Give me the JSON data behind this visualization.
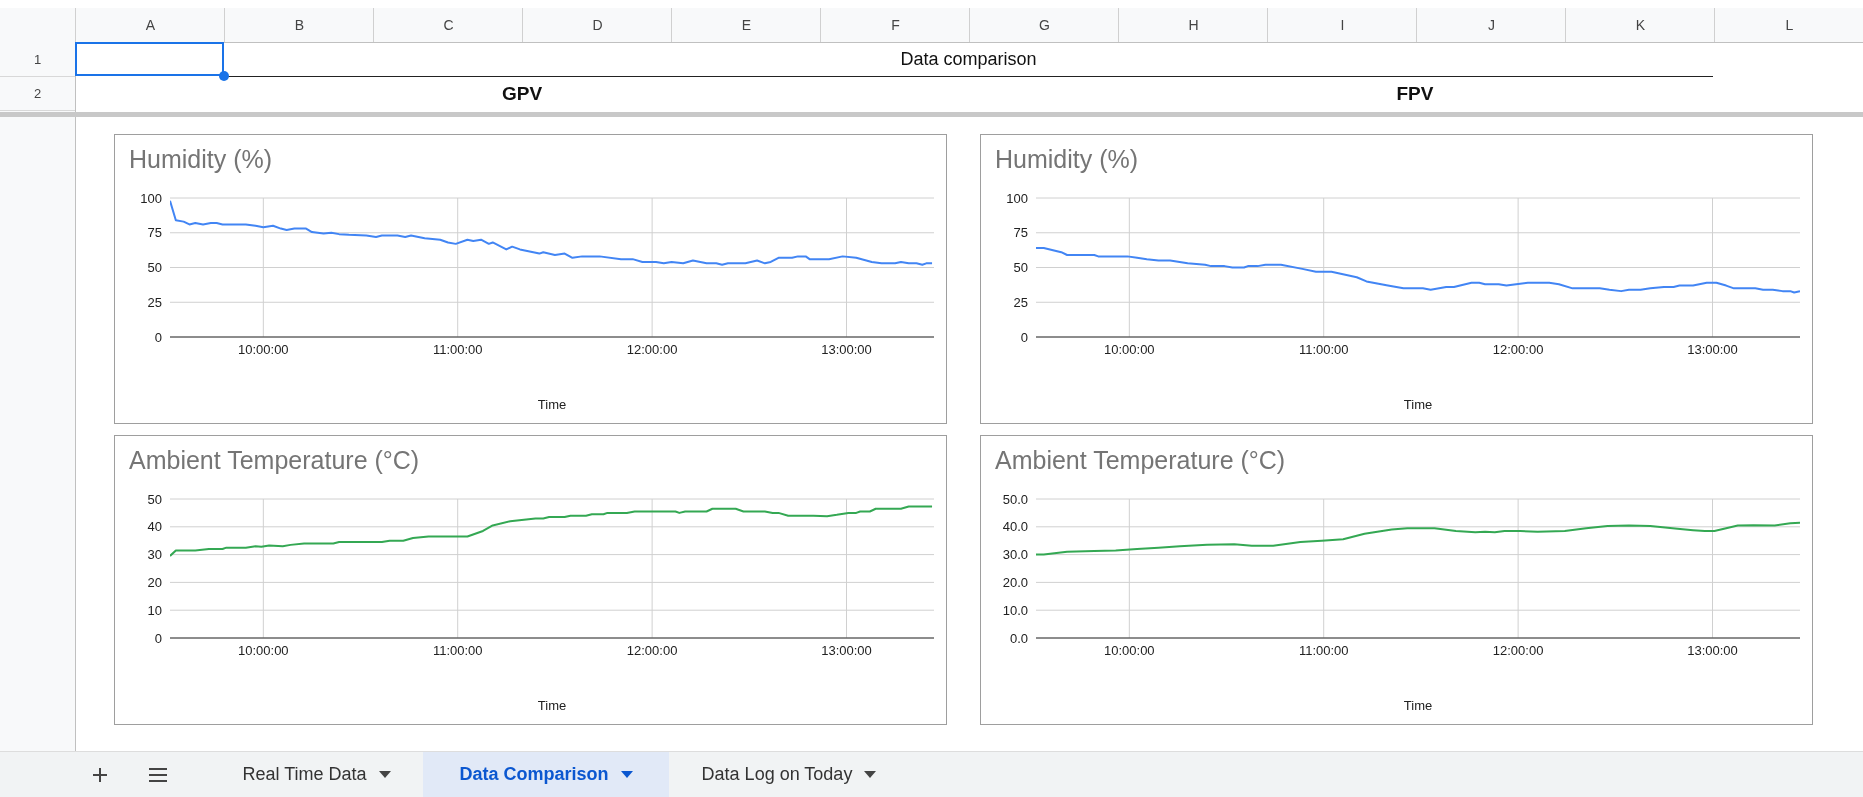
{
  "chart_data": [
    {
      "type": "other",
      "title": "Data comparison",
      "annotations": [
        "GPV",
        "FPV",
        "A",
        "B",
        "C",
        "D",
        "E",
        "F",
        "G",
        "H",
        "I",
        "J",
        "K",
        "L",
        "1",
        "2",
        "Real Time Data",
        "Data Comparison",
        "Data Log on Today"
      ]
    },
    {
      "type": "line",
      "title": "Humidity (%)",
      "xlabel": "Time",
      "color": "#4285f4",
      "grid": true,
      "xlim": [
        9.52,
        13.45
      ],
      "xticks": [
        {
          "value": 10,
          "label": "10:00:00"
        },
        {
          "value": 11,
          "label": "11:00:00"
        },
        {
          "value": 12,
          "label": "12:00:00"
        },
        {
          "value": 13,
          "label": "13:00:00"
        }
      ],
      "ylim": [
        0,
        100
      ],
      "yticks": [
        0,
        25,
        50,
        75,
        100
      ],
      "x": [
        9.52,
        9.55,
        9.59,
        9.62,
        9.65,
        9.69,
        9.73,
        9.76,
        9.79,
        9.91,
        9.96,
        10.0,
        10.05,
        10.09,
        10.12,
        10.16,
        10.22,
        10.25,
        10.31,
        10.35,
        10.39,
        10.44,
        10.53,
        10.58,
        10.61,
        10.69,
        10.73,
        10.76,
        10.83,
        10.91,
        10.95,
        10.99,
        11.05,
        11.08,
        11.12,
        11.16,
        11.18,
        11.25,
        11.28,
        11.32,
        11.42,
        11.44,
        11.5,
        11.55,
        11.59,
        11.64,
        11.73,
        11.84,
        11.9,
        11.95,
        12.02,
        12.06,
        12.1,
        12.16,
        12.21,
        12.28,
        12.33,
        12.36,
        12.39,
        12.48,
        12.54,
        12.58,
        12.61,
        12.65,
        12.72,
        12.75,
        12.79,
        12.81,
        12.91,
        12.98,
        13.05,
        13.13,
        13.18,
        13.25,
        13.28,
        13.32,
        13.36,
        13.39,
        13.41,
        13.44
      ],
      "values": [
        98,
        84,
        83,
        81,
        82,
        81,
        82,
        82,
        81,
        81,
        80,
        79,
        80,
        78,
        77,
        78,
        78,
        75.5,
        74.5,
        75,
        74,
        73.5,
        73,
        72,
        73,
        73,
        72,
        73,
        71,
        70,
        68,
        67,
        70,
        69,
        70,
        67,
        68,
        63,
        65,
        63,
        60,
        61,
        59,
        60,
        57,
        58,
        58,
        56,
        56,
        54,
        54,
        53,
        54,
        53,
        55,
        53,
        53,
        52,
        53,
        53,
        55,
        53,
        54,
        57,
        57,
        58,
        58,
        56,
        56,
        58,
        57,
        54,
        53,
        53,
        54,
        53,
        53,
        52,
        53,
        53
      ]
    },
    {
      "type": "line",
      "title": "Humidity (%)",
      "xlabel": "Time",
      "color": "#4285f4",
      "grid": true,
      "xlim": [
        9.52,
        13.45
      ],
      "xticks": [
        {
          "value": 10,
          "label": "10:00:00"
        },
        {
          "value": 11,
          "label": "11:00:00"
        },
        {
          "value": 12,
          "label": "12:00:00"
        },
        {
          "value": 13,
          "label": "13:00:00"
        }
      ],
      "ylim": [
        0,
        100
      ],
      "yticks": [
        0,
        25,
        50,
        75,
        100
      ],
      "x": [
        9.52,
        9.56,
        9.65,
        9.68,
        9.82,
        9.84,
        9.99,
        10.04,
        10.09,
        10.15,
        10.21,
        10.3,
        10.39,
        10.42,
        10.49,
        10.53,
        10.59,
        10.61,
        10.66,
        10.7,
        10.78,
        10.89,
        10.96,
        11.04,
        11.17,
        11.22,
        11.33,
        11.41,
        11.51,
        11.55,
        11.63,
        11.67,
        11.76,
        11.8,
        11.83,
        11.9,
        11.94,
        11.99,
        12.05,
        12.16,
        12.21,
        12.28,
        12.42,
        12.47,
        12.53,
        12.57,
        12.63,
        12.68,
        12.75,
        12.8,
        12.83,
        12.9,
        12.97,
        13.02,
        13.07,
        13.11,
        13.22,
        13.26,
        13.31,
        13.36,
        13.4,
        13.42,
        13.45
      ],
      "values": [
        64,
        64,
        61,
        59,
        59,
        58,
        58,
        57,
        56,
        55,
        55,
        53,
        52,
        51,
        51,
        50,
        50,
        51,
        51,
        52,
        52,
        49,
        47,
        47,
        43,
        40,
        37,
        35,
        35,
        34,
        36,
        36,
        39,
        39,
        38,
        38,
        37,
        38,
        39,
        39,
        38,
        35,
        35,
        34,
        33,
        34,
        34,
        35,
        36,
        36,
        37,
        37,
        39,
        39,
        37,
        35,
        35,
        34,
        34,
        33,
        33,
        32,
        33
      ]
    },
    {
      "type": "line",
      "title": "Ambient Temperature (°C)",
      "xlabel": "Time",
      "color": "#34a853",
      "grid": true,
      "xlim": [
        9.52,
        13.45
      ],
      "xticks": [
        {
          "value": 10,
          "label": "10:00:00"
        },
        {
          "value": 11,
          "label": "11:00:00"
        },
        {
          "value": 12,
          "label": "12:00:00"
        },
        {
          "value": 13,
          "label": "13:00:00"
        }
      ],
      "ylim": [
        0,
        50
      ],
      "yticks": [
        0,
        10,
        20,
        30,
        40,
        50
      ],
      "x": [
        9.52,
        9.55,
        9.65,
        9.72,
        9.79,
        9.81,
        9.91,
        9.96,
        9.99,
        10.03,
        10.1,
        10.14,
        10.21,
        10.36,
        10.39,
        10.61,
        10.65,
        10.72,
        10.77,
        10.85,
        11.05,
        11.13,
        11.18,
        11.27,
        11.4,
        11.44,
        11.47,
        11.55,
        11.58,
        11.66,
        11.69,
        11.75,
        11.77,
        11.87,
        11.91,
        12.12,
        12.14,
        12.17,
        12.28,
        12.31,
        12.43,
        12.47,
        12.58,
        12.62,
        12.65,
        12.7,
        12.83,
        12.9,
        12.95,
        13.01,
        13.05,
        13.07,
        13.12,
        13.15,
        13.28,
        13.32,
        13.44
      ],
      "values": [
        29.5,
        31.5,
        31.5,
        32,
        32,
        32.5,
        32.5,
        33,
        32.8,
        33.3,
        33,
        33.5,
        34,
        34,
        34.5,
        34.5,
        35,
        35,
        36,
        36.5,
        36.5,
        38.5,
        40.5,
        42,
        43,
        43,
        43.5,
        43.5,
        44,
        44,
        44.5,
        44.5,
        45,
        45,
        45.5,
        45.5,
        45,
        45.5,
        45.5,
        46.5,
        46.5,
        45.5,
        45.5,
        45,
        45,
        44,
        44,
        43.8,
        44.3,
        45,
        45,
        45.5,
        45.5,
        46.5,
        46.5,
        47.3,
        47.3
      ]
    },
    {
      "type": "line",
      "title": "Ambient Temperature (°C)",
      "xlabel": "Time",
      "color": "#34a853",
      "grid": true,
      "xlim": [
        9.52,
        13.45
      ],
      "xticks": [
        {
          "value": 10,
          "label": "10:00:00"
        },
        {
          "value": 11,
          "label": "11:00:00"
        },
        {
          "value": 12,
          "label": "12:00:00"
        },
        {
          "value": 13,
          "label": "13:00:00"
        }
      ],
      "ylim": [
        0,
        50
      ],
      "yticks": [
        {
          "value": 0,
          "label": "0.0"
        },
        {
          "value": 10,
          "label": "10.0"
        },
        {
          "value": 20,
          "label": "20.0"
        },
        {
          "value": 30,
          "label": "30.0"
        },
        {
          "value": 40,
          "label": "40.0"
        },
        {
          "value": 50,
          "label": "50.0"
        }
      ],
      "x": [
        9.52,
        9.56,
        9.68,
        9.82,
        9.93,
        10.04,
        10.15,
        10.26,
        10.4,
        10.54,
        10.63,
        10.74,
        10.88,
        10.99,
        11.1,
        11.21,
        11.35,
        11.43,
        11.57,
        11.68,
        11.78,
        11.83,
        11.88,
        11.93,
        12.01,
        12.1,
        12.24,
        12.35,
        12.46,
        12.57,
        12.68,
        12.82,
        12.9,
        12.96,
        13.01,
        13.07,
        13.13,
        13.21,
        13.32,
        13.4,
        13.45
      ],
      "values": [
        30,
        30,
        31,
        31.3,
        31.5,
        32,
        32.5,
        33,
        33.5,
        33.7,
        33.2,
        33.2,
        34.5,
        35,
        35.5,
        37.5,
        39,
        39.5,
        39.5,
        38.5,
        38,
        38.2,
        38,
        38.5,
        38.5,
        38.2,
        38.5,
        39.5,
        40.3,
        40.5,
        40.3,
        39.3,
        38.8,
        38.5,
        38.5,
        39.5,
        40.5,
        40.6,
        40.5,
        41.3,
        41.5
      ]
    }
  ]
}
